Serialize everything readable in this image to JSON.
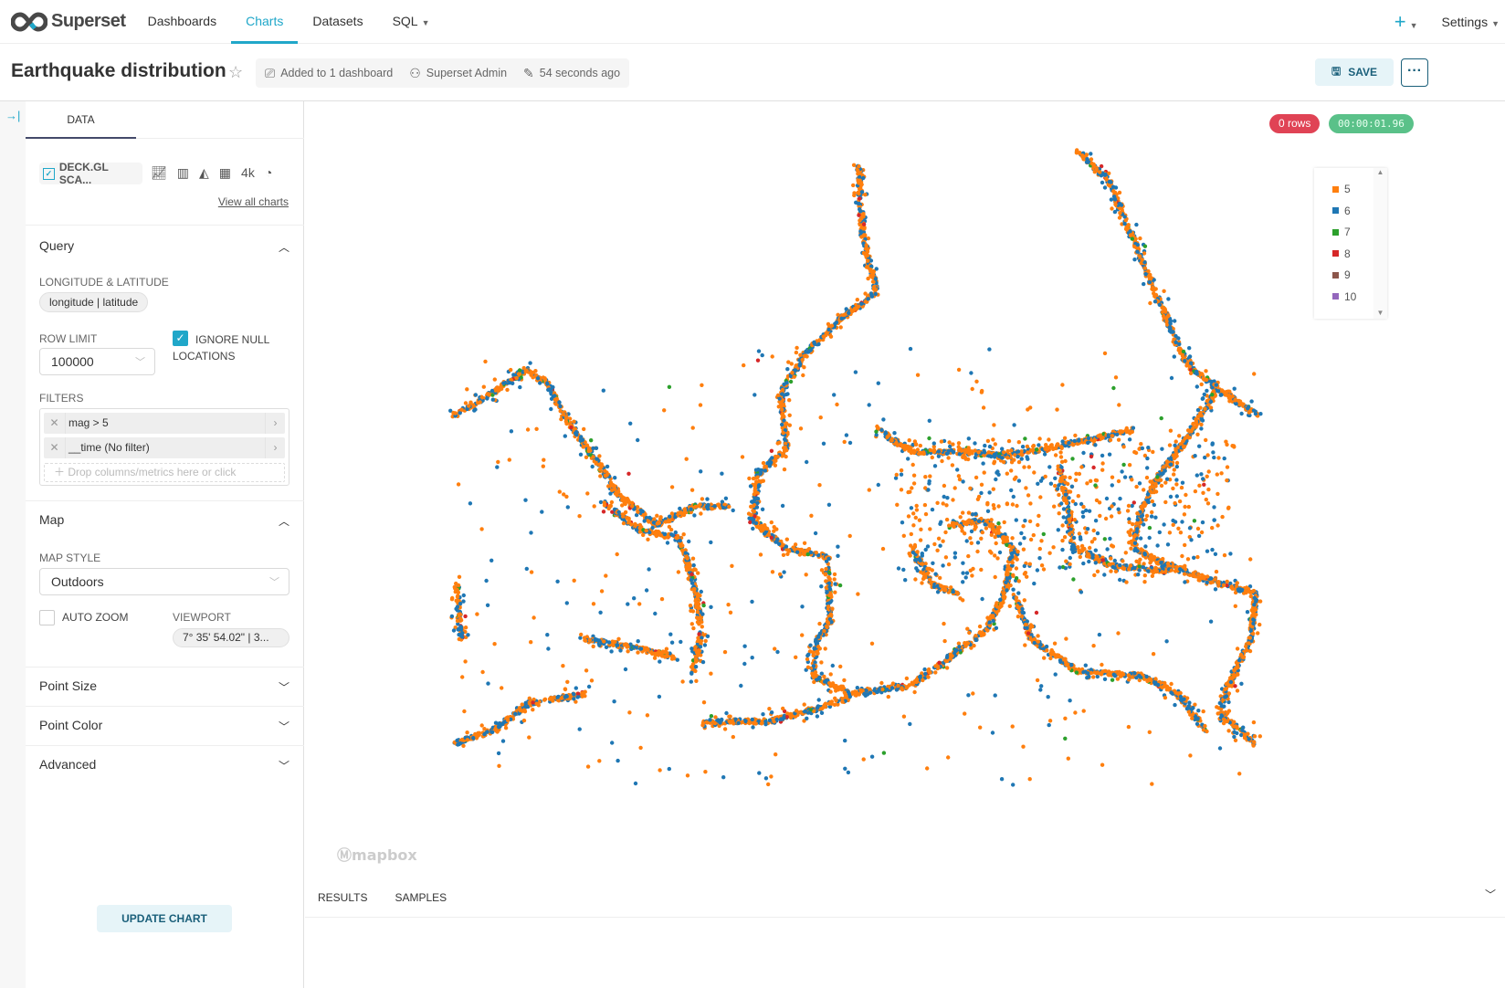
{
  "nav": {
    "brand": "Superset",
    "items": [
      "Dashboards",
      "Charts",
      "Datasets",
      "SQL"
    ],
    "active": "Charts",
    "plus": "+",
    "settings": "Settings"
  },
  "header": {
    "title": "Earthquake distribution",
    "added": "Added to 1 dashboard",
    "owner": "Superset Admin",
    "modified": "54 seconds ago",
    "save": "SAVE",
    "more": "···"
  },
  "panel": {
    "tab": "DATA",
    "viz_type": "DECK.GL SCA...",
    "recent_4k": "4k",
    "view_all": "View all charts",
    "query": {
      "title": "Query",
      "lonlat_label": "LONGITUDE & LATITUDE",
      "lonlat_value": "longitude | latitude",
      "row_limit_label": "ROW LIMIT",
      "row_limit": "100000",
      "ignore_null_label": "IGNORE NULL LOCATIONS",
      "ignore_null_checked": true,
      "filters_label": "FILTERS",
      "filters": [
        "mag > 5",
        "__time (No filter)"
      ],
      "drop_placeholder": "Drop columns/metrics here or click"
    },
    "map": {
      "title": "Map",
      "style_label": "MAP STYLE",
      "style": "Outdoors",
      "auto_zoom_label": "AUTO ZOOM",
      "auto_zoom_checked": false,
      "viewport_label": "VIEWPORT",
      "viewport": "7° 35' 54.02\" | 3..."
    },
    "sections": [
      "Point Size",
      "Point Color",
      "Advanced"
    ],
    "update": "UPDATE CHART"
  },
  "chart": {
    "rows_badge": "0 rows",
    "timer": "00:00:01.96",
    "rows_color": "#e04355",
    "timer_color": "#5ac189",
    "legend": [
      {
        "label": "5",
        "color": "#ff7f0e"
      },
      {
        "label": "6",
        "color": "#1f77b4"
      },
      {
        "label": "7",
        "color": "#2ca02c"
      },
      {
        "label": "8",
        "color": "#d62728"
      },
      {
        "label": "9",
        "color": "#8c564b"
      },
      {
        "label": "10",
        "color": "#9467bd"
      }
    ],
    "attribution": "mapbox"
  },
  "results": {
    "tabs": [
      "RESULTS",
      "SAMPLES"
    ]
  }
}
